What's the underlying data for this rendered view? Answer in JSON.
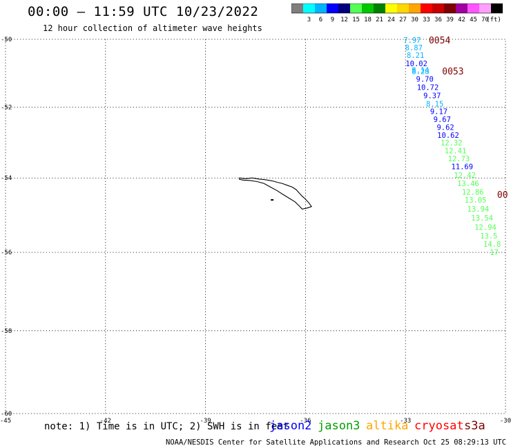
{
  "title": "00:00 — 11:59 UTC 10/23/2022",
  "subtitle": "12 hour collection of altimeter wave heights",
  "colorbar": {
    "colors": [
      "#7f7f7f",
      "#00ffff",
      "#00b4ff",
      "#0000ff",
      "#00007f",
      "#55ff55",
      "#00c800",
      "#008200",
      "#ffff00",
      "#ffd700",
      "#ffa500",
      "#ff0000",
      "#c80000",
      "#7f0000",
      "#a000a0",
      "#ff55ff",
      "#ff9fff",
      "#000000"
    ],
    "labels": [
      "3",
      "6",
      "9",
      "12",
      "15",
      "18",
      "21",
      "24",
      "27",
      "30",
      "33",
      "36",
      "39",
      "42",
      "45",
      "70"
    ],
    "unit": "(ft)"
  },
  "axes": {
    "lon_labels": [
      "-45",
      "-42",
      "-39",
      "-36",
      "-33",
      "-30"
    ],
    "lat_labels": [
      "-50",
      "-52",
      "-54",
      "-56",
      "-58",
      "-60"
    ],
    "lon_values": [
      -45,
      -42,
      -39,
      -36,
      -33,
      -30
    ],
    "lat_values": [
      -50,
      -52,
      -54,
      -56,
      -58,
      -60
    ]
  },
  "pass_labels": [
    {
      "text": "0054",
      "lon": -32.3,
      "lat": -50.02,
      "color": "#7f0000"
    },
    {
      "text": "0053",
      "lon": -31.9,
      "lat": -50.95,
      "color": "#7f0000"
    },
    {
      "text": "00",
      "lon": -30.25,
      "lat": -54.45,
      "color": "#7f0000"
    }
  ],
  "measurements": [
    {
      "v": "7.97",
      "lon": -32.8,
      "lat": -50.02,
      "color": "#00b4ff"
    },
    {
      "v": "8.87",
      "lon": -32.75,
      "lat": -50.25,
      "color": "#00b4ff"
    },
    {
      "v": "8.21",
      "lon": -32.7,
      "lat": -50.48,
      "color": "#00b4ff"
    },
    {
      "v": "10.02",
      "lon": -32.67,
      "lat": -50.72,
      "color": "#0000ff"
    },
    {
      "v": "8.14",
      "lon": -32.55,
      "lat": -50.92,
      "color": "#00b4ff"
    },
    {
      "v": "8.28",
      "lon": -32.55,
      "lat": -50.96,
      "color": "#00b4ff"
    },
    {
      "v": "9.70",
      "lon": -32.42,
      "lat": -51.18,
      "color": "#0000ff"
    },
    {
      "v": "10.72",
      "lon": -32.33,
      "lat": -51.42,
      "color": "#0000ff"
    },
    {
      "v": "9.37",
      "lon": -32.2,
      "lat": -51.66,
      "color": "#0000ff"
    },
    {
      "v": "8.15",
      "lon": -32.12,
      "lat": -51.9,
      "color": "#00b4ff"
    },
    {
      "v": "9.17",
      "lon": -32.0,
      "lat": -52.12,
      "color": "#0000ff"
    },
    {
      "v": "9.67",
      "lon": -31.9,
      "lat": -52.35,
      "color": "#0000ff"
    },
    {
      "v": "9.62",
      "lon": -31.8,
      "lat": -52.58,
      "color": "#0000ff"
    },
    {
      "v": "10.62",
      "lon": -31.72,
      "lat": -52.8,
      "color": "#0000ff"
    },
    {
      "v": "12.32",
      "lon": -31.62,
      "lat": -53.02,
      "color": "#55ff55"
    },
    {
      "v": "12.41",
      "lon": -31.5,
      "lat": -53.24,
      "color": "#55ff55"
    },
    {
      "v": "12.73",
      "lon": -31.4,
      "lat": -53.46,
      "color": "#55ff55"
    },
    {
      "v": "11.69",
      "lon": -31.3,
      "lat": -53.68,
      "color": "#0000ff"
    },
    {
      "v": "12.42",
      "lon": -31.22,
      "lat": -53.92,
      "color": "#55ff55"
    },
    {
      "v": "13.46",
      "lon": -31.12,
      "lat": -54.15,
      "color": "#55ff55"
    },
    {
      "v": "12.86",
      "lon": -30.98,
      "lat": -54.38,
      "color": "#55ff55"
    },
    {
      "v": "13.05",
      "lon": -30.9,
      "lat": -54.6,
      "color": "#55ff55"
    },
    {
      "v": "13.94",
      "lon": -30.82,
      "lat": -54.84,
      "color": "#55ff55"
    },
    {
      "v": "13.54",
      "lon": -30.7,
      "lat": -55.08,
      "color": "#55ff55"
    },
    {
      "v": "12.94",
      "lon": -30.6,
      "lat": -55.33,
      "color": "#55ff55"
    },
    {
      "v": "13.5",
      "lon": -30.5,
      "lat": -55.56,
      "color": "#55ff55"
    },
    {
      "v": "14.8",
      "lon": -30.4,
      "lat": -55.78,
      "color": "#55ff55"
    },
    {
      "v": "17",
      "lon": -30.34,
      "lat": -56.0,
      "color": "#55ff55"
    }
  ],
  "land": {
    "name_shown": false,
    "outline": [
      [
        -37.98,
        -54.0
      ],
      [
        -37.8,
        -54.02
      ],
      [
        -37.6,
        -54.0
      ],
      [
        -37.4,
        -54.03
      ],
      [
        -37.2,
        -54.05
      ],
      [
        -37.0,
        -54.08
      ],
      [
        -36.85,
        -54.12
      ],
      [
        -36.7,
        -54.15
      ],
      [
        -36.55,
        -54.2
      ],
      [
        -36.4,
        -54.25
      ],
      [
        -36.28,
        -54.32
      ],
      [
        -36.2,
        -54.4
      ],
      [
        -36.1,
        -54.5
      ],
      [
        -36.0,
        -54.58
      ],
      [
        -35.9,
        -54.68
      ],
      [
        -35.82,
        -54.78
      ],
      [
        -35.95,
        -54.82
      ],
      [
        -36.1,
        -54.85
      ],
      [
        -36.2,
        -54.75
      ],
      [
        -36.32,
        -54.65
      ],
      [
        -36.5,
        -54.55
      ],
      [
        -36.68,
        -54.45
      ],
      [
        -36.85,
        -54.35
      ],
      [
        -37.05,
        -54.25
      ],
      [
        -37.25,
        -54.15
      ],
      [
        -37.45,
        -54.1
      ],
      [
        -37.65,
        -54.07
      ],
      [
        -37.85,
        -54.06
      ],
      [
        -37.98,
        -54.04
      ],
      [
        -37.98,
        -54.0
      ]
    ],
    "islet": [
      -37.0,
      -54.6
    ]
  },
  "footer": {
    "note": "note: 1) Time is in UTC; 2) SWH is in feet",
    "satellites": [
      {
        "name": "jason2",
        "color": "#0000ff"
      },
      {
        "name": "jason3",
        "color": "#00a000"
      },
      {
        "name": "altika",
        "color": "#ffa500"
      },
      {
        "name": "cryosat",
        "color": "#ff0000"
      },
      {
        "name": "s3a",
        "color": "#7f0000"
      }
    ],
    "credit": "NOAA/NESDIS Center for Satellite Applications and Research    Oct 25 08:29:13 UTC 2022"
  }
}
